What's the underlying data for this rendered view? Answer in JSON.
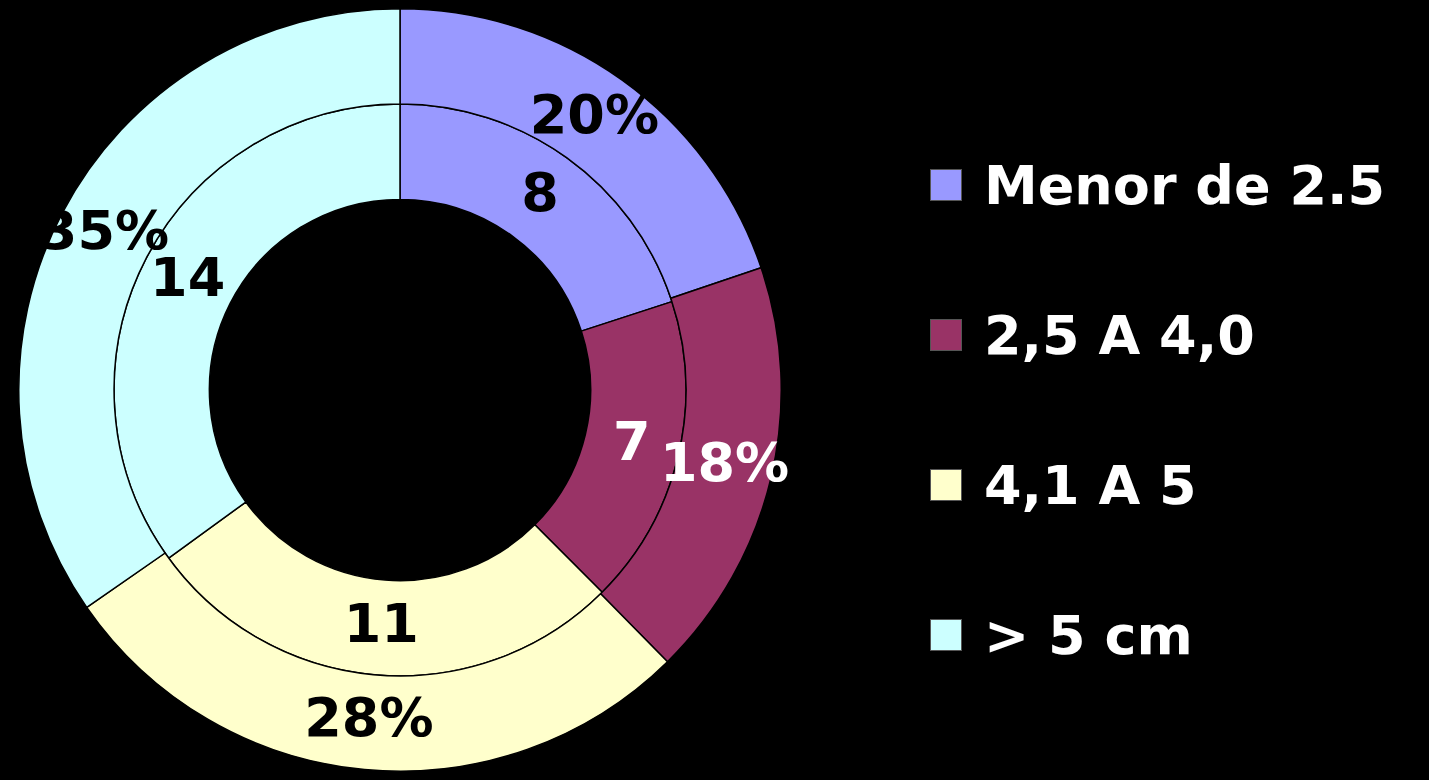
{
  "chart_data": {
    "type": "donut",
    "categories": [
      "Menor de 2.5",
      "2,5 A 4,0",
      "4,1 A 5",
      "> 5 cm"
    ],
    "colors": [
      "#9999ff",
      "#993366",
      "#ffffcc",
      "#ccffff"
    ],
    "series": [
      {
        "values": [
          20,
          18,
          28,
          35
        ],
        "value_labels": [
          "20%",
          "18%",
          "28%",
          "35%"
        ]
      },
      {
        "values": [
          8,
          7,
          11,
          14
        ],
        "value_labels": [
          "8",
          "7",
          "11",
          "14"
        ]
      }
    ],
    "legend": "right"
  }
}
